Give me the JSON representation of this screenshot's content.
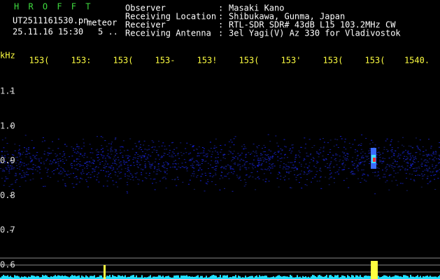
{
  "header": {
    "app": "H R O F F T",
    "file": "UT2511161530.pn",
    "kind": "meteor",
    "datetime": "25.11.16 15:30",
    "count": "5 ..",
    "fields": [
      {
        "label": "Observer",
        "value": "Masaki Kano"
      },
      {
        "label": "Receiving Location",
        "value": "Shibukawa, Gunma, Japan"
      },
      {
        "label": "Receiver",
        "value": "RTL-SDR SDR# 43dB L15 103.2MHz CW"
      },
      {
        "label": "Receiving Antenna",
        "value": "3el Yagi(V) Az 330 for Vladivostok"
      }
    ],
    "separator": ":"
  },
  "freq_axis": {
    "unit": "kHz",
    "labels": [
      "1.1",
      "1.0",
      "0.9",
      "0.8",
      "0.7",
      "0.6"
    ]
  },
  "time_axis": {
    "labels": [
      "153(",
      "153:",
      "153(",
      "153-",
      "153!",
      "153(",
      "153'",
      "153(",
      "153(",
      "1540."
    ]
  }
}
